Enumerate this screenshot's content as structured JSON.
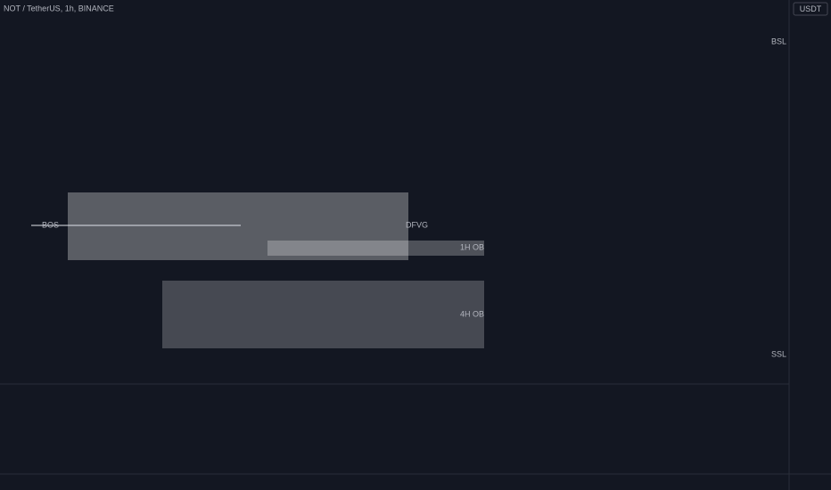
{
  "chart_data": {
    "type": "candlestick",
    "title": "NOT / TetherUS, 1h, BINANCE",
    "currency": "USDT",
    "log_scale": true,
    "grid": true,
    "up_color": "#26a69a",
    "down_color": "#ef5350",
    "candles": [
      [
        0.00778,
        0.00782,
        0.0077,
        0.00772
      ],
      [
        0.00772,
        0.00779,
        0.00768,
        0.00777
      ],
      [
        0.00777,
        0.00786,
        0.00775,
        0.00784
      ],
      [
        0.00784,
        0.00787,
        0.00765,
        0.00768
      ],
      [
        0.00768,
        0.00781,
        0.00766,
        0.00779
      ],
      [
        0.00779,
        0.00795,
        0.00777,
        0.00792
      ],
      [
        0.00792,
        0.00804,
        0.00789,
        0.00801
      ],
      [
        0.00801,
        0.00806,
        0.0079,
        0.00794
      ],
      [
        0.00794,
        0.00818,
        0.00792,
        0.0081
      ],
      [
        0.0081,
        0.00812,
        0.00795,
        0.00798
      ],
      [
        0.00798,
        0.00806,
        0.00793,
        0.00802
      ],
      [
        0.00802,
        0.00805,
        0.00796,
        0.00799
      ],
      [
        0.00799,
        0.00804,
        0.00795,
        0.00801
      ],
      [
        0.00801,
        0.00805,
        0.00797,
        0.008
      ],
      [
        0.008,
        0.00803,
        0.00796,
        0.00802
      ],
      [
        0.00802,
        0.00804,
        0.00788,
        0.00791
      ],
      [
        0.00791,
        0.00799,
        0.00789,
        0.00797
      ],
      [
        0.00797,
        0.00799,
        0.00785,
        0.00788
      ],
      [
        0.00788,
        0.00796,
        0.00786,
        0.00794
      ],
      [
        0.00794,
        0.00797,
        0.00786,
        0.00789
      ],
      [
        0.00789,
        0.00795,
        0.00784,
        0.00792
      ],
      [
        0.00792,
        0.00794,
        0.0078,
        0.00783
      ],
      [
        0.00783,
        0.0079,
        0.0078,
        0.00786
      ],
      [
        0.00786,
        0.00788,
        0.00774,
        0.00777
      ],
      [
        0.00777,
        0.00784,
        0.00774,
        0.00781
      ],
      [
        0.00781,
        0.00786,
        0.00776,
        0.00779
      ],
      [
        0.00779,
        0.00788,
        0.00777,
        0.00785
      ],
      [
        0.00785,
        0.00787,
        0.0077,
        0.00774
      ],
      [
        0.00774,
        0.00789,
        0.00772,
        0.00786
      ],
      [
        0.00786,
        0.00793,
        0.00783,
        0.0079
      ],
      [
        0.0079,
        0.00792,
        0.00781,
        0.00784
      ],
      [
        0.00784,
        0.00788,
        0.00779,
        0.00786
      ],
      [
        0.00786,
        0.00789,
        0.00776,
        0.00778
      ],
      [
        0.00778,
        0.00781,
        0.00762,
        0.00765
      ],
      [
        0.00765,
        0.00776,
        0.00763,
        0.00773
      ],
      [
        0.00773,
        0.00775,
        0.00758,
        0.00761
      ],
      [
        0.00761,
        0.0077,
        0.00756,
        0.00767
      ],
      [
        0.00767,
        0.00769,
        0.00754,
        0.00758
      ],
      [
        0.00758,
        0.00766,
        0.00755,
        0.00763
      ],
      [
        0.00763,
        0.00768,
        0.00758,
        0.00761
      ],
      [
        0.00761,
        0.00772,
        0.00759,
        0.00769
      ],
      [
        0.00769,
        0.00779,
        0.00766,
        0.00776
      ],
      [
        0.00776,
        0.00778,
        0.00766,
        0.0077
      ],
      [
        0.0077,
        0.00786,
        0.00768,
        0.00783
      ],
      [
        0.00783,
        0.00791,
        0.00779,
        0.00788
      ],
      [
        0.00788,
        0.0079,
        0.00778,
        0.00782
      ],
      [
        0.00782,
        0.00795,
        0.0078,
        0.00792
      ],
      [
        0.00792,
        0.00797,
        0.00786,
        0.0079
      ],
      [
        0.0079,
        0.00812,
        0.00788,
        0.00809
      ],
      [
        0.00809,
        0.00825,
        0.00806,
        0.0082
      ],
      [
        0.0082,
        0.00822,
        0.00805,
        0.00809
      ],
      [
        0.00809,
        0.00818,
        0.00804,
        0.00815
      ],
      [
        0.00815,
        0.00817,
        0.00802,
        0.00806
      ],
      [
        0.00806,
        0.00814,
        0.00803,
        0.00811
      ],
      [
        0.00811,
        0.00813,
        0.00801,
        0.00804
      ],
      [
        0.00804,
        0.0081,
        0.008,
        0.00807
      ],
      [
        0.00807,
        0.00809,
        0.00799,
        0.00803
      ],
      [
        0.00803,
        0.00814,
        0.00801,
        0.00812
      ],
      [
        0.00812,
        0.00822,
        0.00809,
        0.00819
      ],
      [
        0.00819,
        0.00831,
        0.00816,
        0.00828
      ],
      [
        0.00828,
        0.0084,
        0.00825,
        0.00837
      ],
      [
        0.00837,
        0.00846,
        0.00832,
        0.00842
      ],
      [
        0.00842,
        0.0085,
        0.00838,
        0.00846
      ],
      [
        0.00846,
        0.00852,
        0.0084,
        0.00843
      ],
      [
        0.00843,
        0.00855,
        0.00841,
        0.00851
      ],
      [
        0.00851,
        0.00856,
        0.00844,
        0.00847
      ],
      [
        0.00847,
        0.00862,
        0.00845,
        0.00858
      ],
      [
        0.00858,
        0.00865,
        0.00849,
        0.00853
      ],
      [
        0.00853,
        0.00868,
        0.0085,
        0.00863
      ],
      [
        0.00863,
        0.00878,
        0.00852,
        0.00856
      ],
      [
        0.00856,
        0.0087,
        0.00853,
        0.00866
      ],
      [
        0.00866,
        0.00872,
        0.00848,
        0.00852
      ],
      [
        0.00852,
        0.00864,
        0.00846,
        0.0086
      ],
      [
        0.0086,
        0.00863,
        0.00842,
        0.00847
      ],
      [
        0.00847,
        0.00858,
        0.00838,
        0.00854
      ],
      [
        0.00854,
        0.00862,
        0.0084,
        0.00845
      ],
      [
        0.00845,
        0.0088,
        0.00843,
        0.00875
      ],
      [
        0.00875,
        0.00898,
        0.00868,
        0.00893
      ],
      [
        0.00893,
        0.00912,
        0.00886,
        0.00905
      ],
      [
        0.00905,
        0.00909,
        0.0086,
        0.00868
      ],
      [
        0.00868,
        0.0092,
        0.00862,
        0.00916
      ],
      [
        0.00916,
        0.0093,
        0.00898,
        0.0091
      ],
      [
        0.0091,
        0.00918,
        0.0085,
        0.00856
      ],
      [
        0.00856,
        0.00902,
        0.0085,
        0.00896
      ],
      [
        0.00896,
        0.00912,
        0.0088,
        0.00886
      ],
      [
        0.00886,
        0.00894,
        0.00852,
        0.00862
      ],
      [
        0.00862,
        0.00872,
        0.00855,
        0.00868
      ],
      [
        0.00868,
        0.00874,
        0.00858,
        0.00863
      ],
      [
        0.00863,
        0.0087,
        0.0085,
        0.00867
      ],
      [
        0.00867,
        0.00869,
        0.00852,
        0.00856
      ],
      [
        0.00856,
        0.00866,
        0.00846,
        0.00862
      ],
      [
        0.00862,
        0.00864,
        0.00838,
        0.00843
      ],
      [
        0.00843,
        0.00858,
        0.0084,
        0.00855
      ],
      [
        0.00855,
        0.00869,
        0.00852,
        0.00865
      ],
      [
        0.00865,
        0.00868,
        0.00853,
        0.00858
      ],
      [
        0.00858,
        0.00875,
        0.00856,
        0.00869
      ],
      [
        0.00869,
        0.00878,
        0.00852,
        0.00856
      ],
      [
        0.00856,
        0.00862,
        0.00854,
        0.00857
      ]
    ],
    "volume": [
      3,
      4,
      5,
      6,
      4,
      7,
      10,
      5,
      8,
      6,
      4,
      3,
      5,
      4,
      3,
      6,
      4,
      5,
      3,
      4,
      5,
      6,
      4,
      7,
      3,
      4,
      5,
      8,
      6,
      4,
      3,
      4,
      5,
      9,
      6,
      8,
      7,
      10,
      6,
      5,
      7,
      8,
      5,
      9,
      6,
      4,
      7,
      5,
      14,
      12,
      8,
      6,
      5,
      4,
      6,
      5,
      4,
      7,
      9,
      12,
      8,
      10,
      7,
      5,
      6,
      5,
      8,
      6,
      7,
      9,
      6,
      8,
      7,
      6,
      5,
      6,
      10,
      14,
      22,
      18,
      25,
      20,
      23,
      21,
      12,
      10,
      6,
      5,
      7,
      5,
      6,
      8,
      5,
      4,
      5,
      4,
      3,
      2
    ],
    "xlim": [
      -0.5,
      168.5
    ],
    "xticks": [
      {
        "value": 4,
        "label": "12"
      },
      {
        "value": 16,
        "label": "12:00"
      },
      {
        "value": 28,
        "label": "13"
      },
      {
        "value": 40,
        "label": "12:00"
      },
      {
        "value": 52,
        "label": "14"
      },
      {
        "value": 64,
        "label": "12:00"
      },
      {
        "value": 76,
        "label": "15"
      },
      {
        "value": 88,
        "label": "12:00"
      },
      {
        "value": 100,
        "label": "16"
      },
      {
        "value": 112,
        "label": "12:00"
      },
      {
        "value": 124,
        "label": "17"
      },
      {
        "value": 136,
        "label": "12:00"
      },
      {
        "value": 148,
        "label": "18"
      },
      {
        "value": 160,
        "label": "12:00"
      }
    ],
    "ylim": [
      0.007355,
      0.00952
    ],
    "yticks": [
      {
        "value": 0.0092,
        "label": "0.009200"
      },
      {
        "value": 0.009,
        "label": "0.009000"
      },
      {
        "value": 0.0088,
        "label": "0.008800"
      },
      {
        "value": 0.0084,
        "label": "0.008400"
      },
      {
        "value": 0.0082,
        "label": "0.008200"
      },
      {
        "value": 0.00795,
        "label": "0.007950"
      },
      {
        "value": 0.00785,
        "label": "0.007850"
      },
      {
        "value": 0.00765,
        "label": "0.007650"
      },
      {
        "value": 0.00745,
        "label": "0.007450"
      }
    ],
    "fib_levels": [
      {
        "value": 0.0093,
        "label": "0 (0.009300)",
        "color": "#d1d4dc"
      },
      {
        "value": 0.008417,
        "label": "0.5 (0.008417)",
        "color": "#d1d4dc"
      },
      {
        "value": 0.008208,
        "label": "0.62 (0.008208)",
        "color": "#4caf50"
      },
      {
        "value": 0.008054,
        "label": "0.705 (0.008054)",
        "color": "#ffeb3b"
      },
      {
        "value": 0.007904,
        "label": "0.79 (0.007904)",
        "color": "#4caf50"
      },
      {
        "value": 0.007533,
        "label": "1 (0.007533)",
        "color": "#d1d4dc"
      }
    ],
    "price_labels": [
      {
        "value": 0.009303,
        "label": "0.009303",
        "color": "#2962ff"
      },
      {
        "value": 0.00929,
        "label": "0.009290",
        "color": "#f23645"
      },
      {
        "value": 0.008574,
        "label": "0.008574",
        "color": "#f23645"
      },
      {
        "value": 0.008057,
        "label": "0.008057",
        "color": "#434651"
      },
      {
        "value": 0.007787,
        "label": "0.007787",
        "color": "#f23645"
      },
      {
        "value": 0.007529,
        "label": "0.007529",
        "color": "#f23645"
      }
    ],
    "countdown": "32:35",
    "annotations": {
      "bos": "BOS",
      "dfvg": "DFVG",
      "ob_1h": "1H OB",
      "ob_4h": "4H OB",
      "bsl": "BSL",
      "ssl": "SSL"
    },
    "rsi": {
      "color": "#7e57c2",
      "ma_color": "#f5d94a",
      "ylim": [
        24,
        80
      ],
      "yticks": [
        {
          "value": 80,
          "label": "80.00"
        },
        {
          "value": 60,
          "label": "60.00"
        },
        {
          "value": 40,
          "label": "40.00"
        }
      ],
      "bands": [
        70,
        50,
        30
      ],
      "values": [
        45,
        50,
        56,
        40,
        52,
        60,
        66,
        58,
        68,
        55,
        60,
        56,
        58,
        56,
        59,
        48,
        54,
        46,
        52,
        48,
        52,
        44,
        50,
        42,
        48,
        46,
        52,
        42,
        56,
        60,
        52,
        55,
        46,
        38,
        45,
        36,
        44,
        35,
        42,
        40,
        50,
        58,
        50,
        62,
        66,
        56,
        66,
        60,
        73,
        76,
        62,
        68,
        57,
        64,
        55,
        60,
        54,
        66,
        72,
        75,
        76,
        74,
        75,
        70,
        74,
        66,
        72,
        64,
        73,
        62,
        70,
        57,
        66,
        55,
        63,
        53,
        70,
        74,
        76,
        56,
        72,
        73,
        50,
        64,
        60,
        52,
        55,
        52,
        55,
        50,
        54,
        44,
        52,
        56,
        50,
        56,
        48,
        49
      ],
      "ma": [
        50,
        50,
        50,
        51,
        51,
        52,
        53,
        53,
        54,
        55,
        56,
        56,
        57,
        57,
        57,
        57,
        56,
        55,
        55,
        54,
        53,
        52,
        51,
        50,
        49,
        49,
        48,
        48,
        48,
        48,
        48,
        48,
        48,
        47,
        47,
        46,
        45,
        44,
        43,
        42,
        42,
        42,
        43,
        44,
        45,
        46,
        48,
        50,
        52,
        54,
        56,
        58,
        59,
        60,
        61,
        62,
        63,
        63,
        64,
        65,
        66,
        67,
        68,
        69,
        70,
        70,
        70,
        71,
        71,
        70,
        70,
        69,
        69,
        68,
        67,
        66,
        66,
        66,
        67,
        66,
        65,
        65,
        64,
        63,
        62,
        61,
        60,
        59,
        57,
        56,
        55,
        54,
        53,
        52,
        52,
        51,
        50,
        50
      ]
    }
  }
}
